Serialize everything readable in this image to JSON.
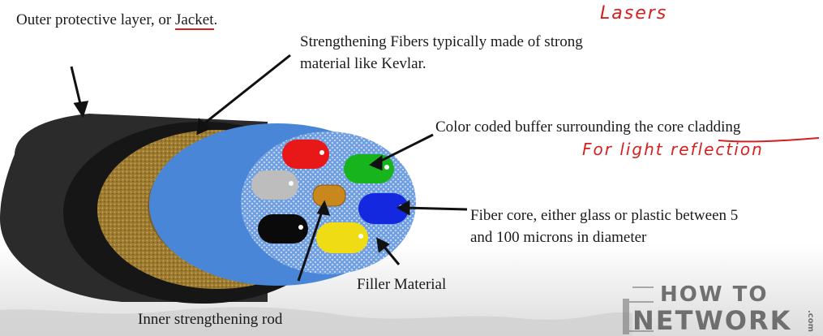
{
  "labels": {
    "jacket_prefix": "Outer protective layer, or ",
    "jacket_word": "Jacket",
    "jacket_suffix": ".",
    "fibers_line1": "Strengthening Fibers typically made of strong",
    "fibers_line2": "material like Kevlar.",
    "buffer_prefix": "Color coded buffer surrounding the ",
    "buffer_underlined": "core cladding",
    "core_line1": "Fiber core, either glass or plastic between 5",
    "core_line2": "and 100 microns in diameter",
    "filler": "Filler Material",
    "rod": "Inner strengthening rod"
  },
  "annotations": {
    "lasers": "Lasers",
    "light_reflection": "For light reflection"
  },
  "logo": {
    "line1": "HOW TO",
    "line2": "NETWORK",
    "suffix": ".com"
  },
  "colors": {
    "buffer_red": "#e81818",
    "buffer_green": "#18b41e",
    "buffer_blue": "#1428e0",
    "buffer_gray": "#bdbdbd",
    "buffer_black": "#0a0a0a",
    "buffer_yellow": "#f0dc14",
    "rod_orange": "#c8881e",
    "cladding_blue": "#4a86d8",
    "kevlar_gold": "#8a6a28",
    "jacket_black": "#2b2b2b",
    "annotation_red": "#d42020"
  }
}
